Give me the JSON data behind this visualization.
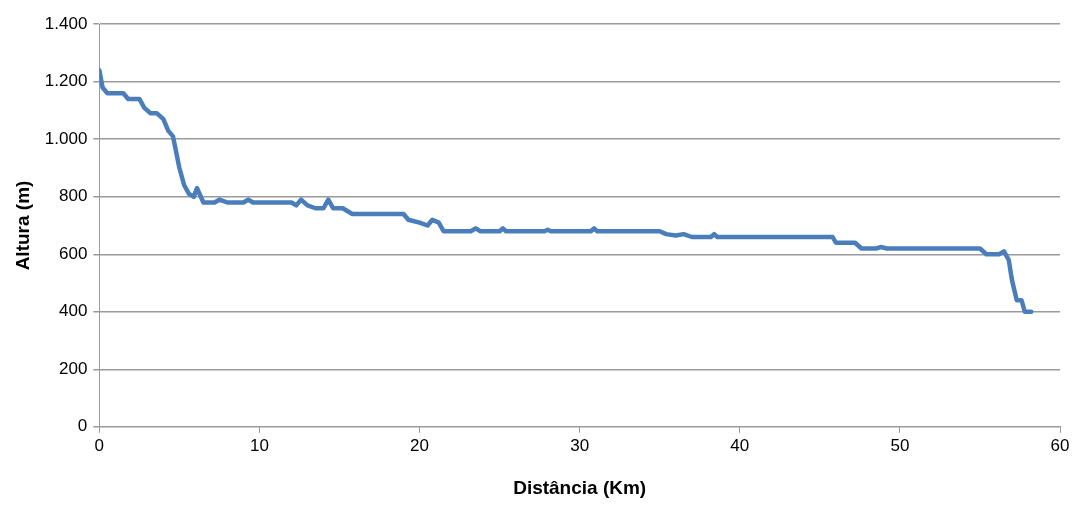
{
  "chart_data": {
    "type": "line",
    "xlabel": "Distância (Km)",
    "ylabel": "Altura (m)",
    "xlim": [
      0,
      60
    ],
    "xticks": [
      0,
      10,
      20,
      30,
      40,
      50,
      60
    ],
    "ylim": [
      0,
      1400
    ],
    "yticks": [
      {
        "value": 0,
        "label": "0"
      },
      {
        "value": 200,
        "label": "200"
      },
      {
        "value": 400,
        "label": "400"
      },
      {
        "value": 600,
        "label": "600"
      },
      {
        "value": 800,
        "label": "800"
      },
      {
        "value": 1000,
        "label": "1.000"
      },
      {
        "value": 1200,
        "label": "1.200"
      },
      {
        "value": 1400,
        "label": "1.400"
      }
    ],
    "grid": "y",
    "legend": false,
    "marker": "none",
    "line_style": "solid",
    "series": [
      {
        "color": "#4a7ebb",
        "x": [
          0,
          0.2,
          0.5,
          1.5,
          1.8,
          2.5,
          2.8,
          3.2,
          3.6,
          4,
          4.3,
          4.6,
          5,
          5.3,
          5.6,
          5.9,
          6.1,
          6.5,
          7.2,
          7.5,
          8,
          9,
          9.3,
          9.6,
          12,
          12.3,
          12.6,
          13,
          13.5,
          14,
          14.3,
          14.6,
          15.2,
          15.8,
          19,
          19.3,
          20,
          20.5,
          20.8,
          21.2,
          21.5,
          23.2,
          23.5,
          23.8,
          25,
          25.2,
          25.4,
          27.8,
          28,
          28.2,
          30.7,
          30.9,
          31.1,
          35,
          35.4,
          36,
          36.5,
          37,
          38.2,
          38.4,
          38.6,
          45.8,
          46,
          47.2,
          47.6,
          48.5,
          48.8,
          49.2,
          55,
          55.4,
          56.2,
          56.5,
          56.8,
          57,
          57.3,
          57.6,
          57.8,
          58.2
        ],
        "values": [
          1240,
          1180,
          1160,
          1160,
          1140,
          1140,
          1110,
          1090,
          1090,
          1070,
          1030,
          1010,
          900,
          840,
          810,
          800,
          830,
          780,
          780,
          790,
          780,
          780,
          790,
          780,
          780,
          770,
          790,
          770,
          760,
          760,
          790,
          760,
          760,
          740,
          740,
          720,
          710,
          700,
          720,
          710,
          680,
          680,
          690,
          680,
          680,
          690,
          680,
          680,
          685,
          680,
          680,
          690,
          680,
          680,
          670,
          665,
          670,
          660,
          660,
          670,
          660,
          660,
          640,
          640,
          620,
          620,
          625,
          620,
          620,
          600,
          600,
          610,
          580,
          510,
          440,
          440,
          400,
          400
        ]
      }
    ]
  }
}
